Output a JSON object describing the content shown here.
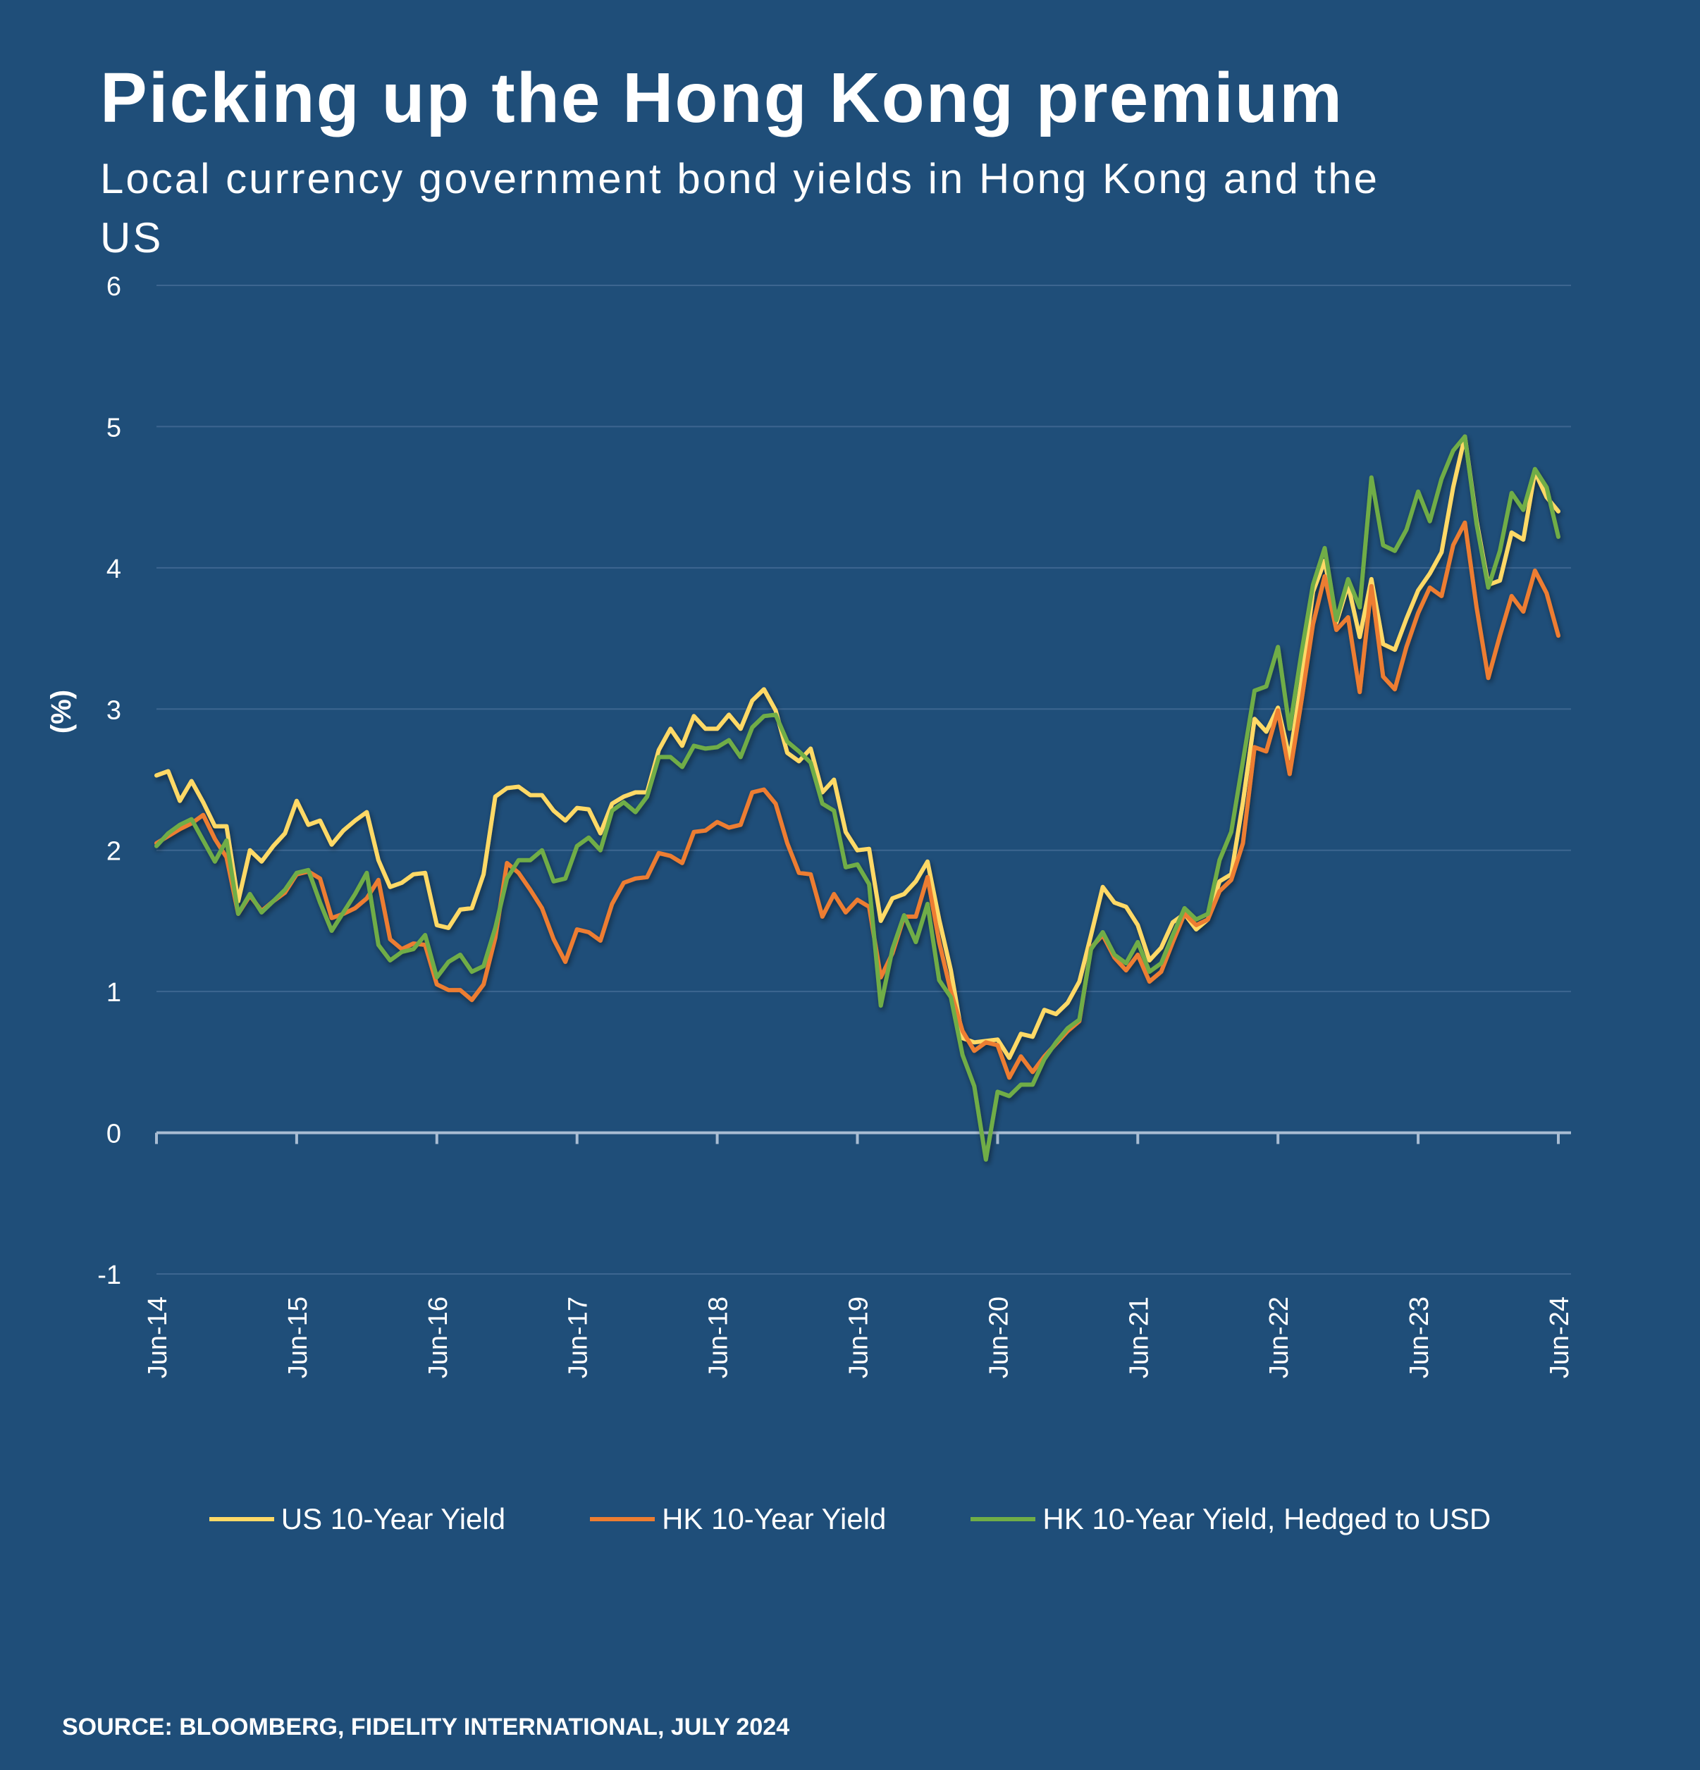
{
  "chart_data": {
    "type": "line",
    "title": "Picking up the Hong Kong premium",
    "subtitle": "Local currency government bond yields in Hong Kong and the US",
    "ylabel": "(%)",
    "xlabel": "",
    "ylim": [
      -1,
      6
    ],
    "yticks": [
      6,
      5,
      4,
      3,
      2,
      1,
      0,
      -1
    ],
    "xticks": [
      "Jun-14",
      "Jun-15",
      "Jun-16",
      "Jun-17",
      "Jun-18",
      "Jun-19",
      "Jun-20",
      "Jun-21",
      "Jun-22",
      "Jun-23",
      "Jun-24"
    ],
    "x_range": [
      "Jun-14",
      "Jun-24"
    ],
    "x_frequency": "monthly",
    "grid": true,
    "legend_position": "bottom",
    "series": [
      {
        "name": "US 10-Year Yield",
        "color": "#ffd966",
        "values": [
          2.53,
          2.56,
          2.35,
          2.49,
          2.34,
          2.17,
          2.17,
          1.64,
          2.0,
          1.92,
          2.03,
          2.12,
          2.35,
          2.18,
          2.21,
          2.04,
          2.14,
          2.21,
          2.27,
          1.93,
          1.74,
          1.77,
          1.83,
          1.84,
          1.47,
          1.45,
          1.58,
          1.59,
          1.83,
          2.38,
          2.44,
          2.45,
          2.39,
          2.39,
          2.28,
          2.21,
          2.3,
          2.29,
          2.12,
          2.33,
          2.38,
          2.41,
          2.41,
          2.71,
          2.86,
          2.74,
          2.95,
          2.86,
          2.86,
          2.96,
          2.86,
          3.06,
          3.14,
          2.99,
          2.69,
          2.63,
          2.72,
          2.41,
          2.5,
          2.13,
          2.0,
          2.01,
          1.5,
          1.66,
          1.69,
          1.78,
          1.92,
          1.51,
          1.15,
          0.67,
          0.64,
          0.65,
          0.66,
          0.53,
          0.7,
          0.68,
          0.87,
          0.84,
          0.92,
          1.07,
          1.4,
          1.74,
          1.63,
          1.6,
          1.47,
          1.22,
          1.31,
          1.49,
          1.55,
          1.44,
          1.51,
          1.78,
          1.83,
          2.34,
          2.93,
          2.84,
          3.01,
          2.65,
          3.19,
          3.83,
          4.05,
          3.61,
          3.88,
          3.51,
          3.92,
          3.46,
          3.42,
          3.64,
          3.84,
          3.96,
          4.11,
          4.57,
          4.93,
          4.33,
          3.88,
          3.91,
          4.25,
          4.2,
          4.68,
          4.5,
          4.4
        ]
      },
      {
        "name": "HK 10-Year Yield",
        "color": "#ed7d31",
        "values": [
          2.05,
          2.1,
          2.15,
          2.19,
          2.25,
          2.08,
          1.95,
          1.55,
          1.68,
          1.57,
          1.64,
          1.7,
          1.83,
          1.85,
          1.8,
          1.52,
          1.55,
          1.59,
          1.66,
          1.79,
          1.37,
          1.3,
          1.34,
          1.33,
          1.05,
          1.01,
          1.01,
          0.94,
          1.05,
          1.38,
          1.91,
          1.84,
          1.72,
          1.59,
          1.37,
          1.21,
          1.44,
          1.42,
          1.36,
          1.62,
          1.77,
          1.8,
          1.81,
          1.98,
          1.96,
          1.91,
          2.13,
          2.14,
          2.2,
          2.16,
          2.18,
          2.41,
          2.43,
          2.33,
          2.05,
          1.84,
          1.83,
          1.53,
          1.69,
          1.56,
          1.65,
          1.6,
          1.1,
          1.27,
          1.53,
          1.53,
          1.81,
          1.35,
          1.0,
          0.72,
          0.58,
          0.64,
          0.62,
          0.39,
          0.54,
          0.43,
          0.54,
          0.63,
          0.72,
          0.79,
          1.31,
          1.4,
          1.24,
          1.15,
          1.26,
          1.07,
          1.14,
          1.35,
          1.55,
          1.47,
          1.51,
          1.71,
          1.79,
          2.05,
          2.73,
          2.7,
          2.99,
          2.54,
          3.05,
          3.6,
          3.94,
          3.56,
          3.65,
          3.12,
          3.87,
          3.23,
          3.14,
          3.44,
          3.68,
          3.86,
          3.8,
          4.16,
          4.32,
          3.72,
          3.22,
          3.52,
          3.8,
          3.69,
          3.98,
          3.82,
          3.52
        ]
      },
      {
        "name": "HK 10-Year Yield, Hedged to USD",
        "color": "#70ad47",
        "values": [
          2.03,
          2.12,
          2.18,
          2.22,
          2.07,
          1.92,
          2.07,
          1.55,
          1.69,
          1.56,
          1.64,
          1.72,
          1.84,
          1.86,
          1.63,
          1.43,
          1.56,
          1.69,
          1.84,
          1.33,
          1.22,
          1.28,
          1.3,
          1.4,
          1.1,
          1.21,
          1.26,
          1.14,
          1.18,
          1.45,
          1.8,
          1.93,
          1.93,
          2.0,
          1.78,
          1.8,
          2.03,
          2.09,
          2.0,
          2.28,
          2.34,
          2.27,
          2.38,
          2.66,
          2.66,
          2.59,
          2.74,
          2.72,
          2.73,
          2.78,
          2.66,
          2.87,
          2.95,
          2.96,
          2.77,
          2.7,
          2.62,
          2.33,
          2.28,
          1.88,
          1.9,
          1.76,
          0.9,
          1.3,
          1.54,
          1.35,
          1.62,
          1.08,
          0.96,
          0.55,
          0.33,
          -0.19,
          0.29,
          0.26,
          0.34,
          0.34,
          0.52,
          0.64,
          0.74,
          0.8,
          1.3,
          1.42,
          1.26,
          1.2,
          1.35,
          1.14,
          1.2,
          1.4,
          1.59,
          1.51,
          1.55,
          1.93,
          2.13,
          2.63,
          3.13,
          3.16,
          3.44,
          2.86,
          3.39,
          3.88,
          4.14,
          3.63,
          3.92,
          3.72,
          4.64,
          4.16,
          4.12,
          4.27,
          4.54,
          4.33,
          4.63,
          4.83,
          4.93,
          4.31,
          3.86,
          4.12,
          4.53,
          4.41,
          4.7,
          4.57,
          4.22
        ]
      }
    ]
  },
  "source": "SOURCE: BLOOMBERG, FIDELITY INTERNATIONAL, JULY 2024",
  "colors": {
    "background": "#1f4e79",
    "grid": "#3d6690",
    "axis": "#a9bdd3"
  }
}
